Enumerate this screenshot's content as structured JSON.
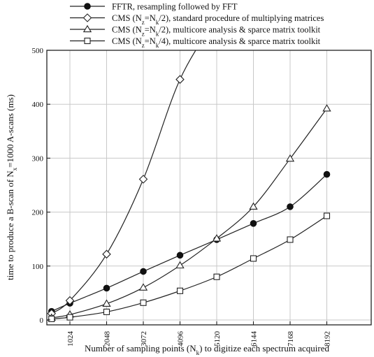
{
  "chart_data": {
    "type": "line",
    "xlabel_parts": [
      "Number of sampling points (N",
      "k",
      ") to digitize each spectrum acquired"
    ],
    "ylabel_parts": [
      "time to produce a B-scan of N",
      "x",
      "=1000 A-scans (ms)"
    ],
    "x": [
      512,
      1024,
      2048,
      3072,
      4096,
      5120,
      6144,
      7168,
      8192
    ],
    "xticks": [
      "1024",
      "2048",
      "3072",
      "4096",
      "5120",
      "6144",
      "7168",
      "8192"
    ],
    "yticks": [
      "0",
      "100",
      "200",
      "300",
      "400",
      "500"
    ],
    "xlim": [
      0,
      8500
    ],
    "ylim": [
      0,
      500
    ],
    "grid": true,
    "legend_position": "top (above plot)",
    "series": [
      {
        "marker": "filled-circle",
        "legend_parts": [
          "FFTR, resampling followed by FFT"
        ],
        "values": [
          16,
          31,
          59,
          90,
          120,
          149,
          179,
          210,
          270
        ]
      },
      {
        "marker": "open-diamond",
        "legend_parts": [
          "CMS (N",
          "z",
          "=N",
          "k",
          "/2), standard procedure of multiplying matrices"
        ],
        "values": [
          12,
          36,
          122,
          261,
          446,
          560,
          null,
          null,
          null
        ]
      },
      {
        "marker": "open-triangle",
        "legend_parts": [
          "CMS (N",
          "z",
          "=N",
          "k",
          "/2), multicore analysis & sparce matrix toolkit"
        ],
        "values": [
          4,
          10,
          30,
          60,
          101,
          151,
          210,
          299,
          392
        ]
      },
      {
        "marker": "open-square",
        "legend_parts": [
          "CMS (N",
          "z",
          "=N",
          "k",
          "/4), multicore analysis & sparce matrix toolkit"
        ],
        "values": [
          2,
          5,
          15,
          32,
          54,
          80,
          114,
          149,
          193
        ]
      }
    ]
  }
}
